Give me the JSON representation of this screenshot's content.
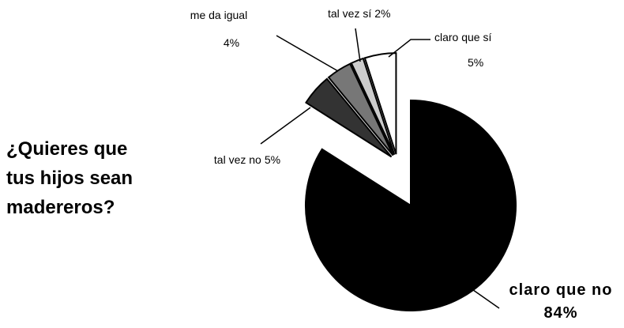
{
  "chart_data": {
    "type": "pie",
    "title": "¿Quieres que tus hijos sean madereros?",
    "categories": [
      "claro que no",
      "tal vez no",
      "me da igual",
      "tal vez sí",
      "claro que sí"
    ],
    "values": [
      84,
      5,
      4,
      2,
      5
    ],
    "value_labels": [
      "84%",
      "5%",
      "4%",
      "2%",
      "5%"
    ],
    "colors": [
      "#000000",
      "#333333",
      "#777777",
      "#cccccc",
      "#ffffff"
    ]
  }
}
